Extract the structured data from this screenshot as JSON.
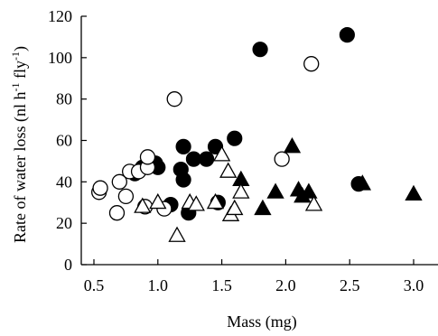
{
  "chart_data": {
    "type": "scatter",
    "xlabel": "Mass (mg)",
    "ylabel_parts": {
      "main": "Rate of water loss (nl h",
      "sup1": "-1",
      "mid": " fly",
      "sup2": "-1",
      "end": ")"
    },
    "xlim": [
      0.5,
      3.2
    ],
    "ylim": [
      0,
      120
    ],
    "xticks": [
      0.5,
      1.0,
      1.5,
      2.0,
      2.5,
      3.0
    ],
    "xtick_labels": [
      "0.5",
      "1.0",
      "1.5",
      "2.0",
      "2.5",
      "3.0"
    ],
    "yticks": [
      0,
      20,
      40,
      60,
      80,
      100,
      120
    ],
    "ytick_labels": [
      "0",
      "20",
      "40",
      "60",
      "80",
      "100",
      "120"
    ],
    "grid": false,
    "legend": "none",
    "series": [
      {
        "marker": "filled-circle",
        "points": [
          [
            0.82,
            44
          ],
          [
            0.88,
            47
          ],
          [
            0.98,
            49
          ],
          [
            1.0,
            47
          ],
          [
            1.1,
            29
          ],
          [
            1.18,
            46
          ],
          [
            1.2,
            57
          ],
          [
            1.2,
            41
          ],
          [
            1.24,
            25
          ],
          [
            1.28,
            51
          ],
          [
            1.38,
            51
          ],
          [
            1.45,
            57
          ],
          [
            1.47,
            30
          ],
          [
            1.6,
            61
          ],
          [
            1.8,
            104
          ],
          [
            2.48,
            111
          ],
          [
            2.57,
            39
          ]
        ]
      },
      {
        "marker": "open-circle",
        "points": [
          [
            0.54,
            35
          ],
          [
            0.55,
            37
          ],
          [
            0.68,
            25
          ],
          [
            0.7,
            40
          ],
          [
            0.75,
            33
          ],
          [
            0.78,
            45
          ],
          [
            0.85,
            45
          ],
          [
            0.9,
            28
          ],
          [
            0.92,
            47
          ],
          [
            0.92,
            52
          ],
          [
            1.05,
            27
          ],
          [
            1.13,
            80
          ],
          [
            1.97,
            51
          ],
          [
            2.2,
            97
          ]
        ]
      },
      {
        "marker": "filled-triangle",
        "points": [
          [
            1.65,
            41
          ],
          [
            1.82,
            27
          ],
          [
            1.92,
            35
          ],
          [
            2.05,
            57
          ],
          [
            2.1,
            36
          ],
          [
            2.13,
            33
          ],
          [
            2.18,
            35
          ],
          [
            2.6,
            39
          ],
          [
            3.0,
            34
          ]
        ]
      },
      {
        "marker": "open-triangle",
        "points": [
          [
            0.88,
            28
          ],
          [
            1.0,
            30
          ],
          [
            1.15,
            14
          ],
          [
            1.25,
            30
          ],
          [
            1.3,
            29
          ],
          [
            1.45,
            30
          ],
          [
            1.5,
            53
          ],
          [
            1.55,
            45
          ],
          [
            1.57,
            24
          ],
          [
            1.6,
            27
          ],
          [
            1.65,
            35
          ],
          [
            2.22,
            29
          ]
        ]
      }
    ]
  }
}
